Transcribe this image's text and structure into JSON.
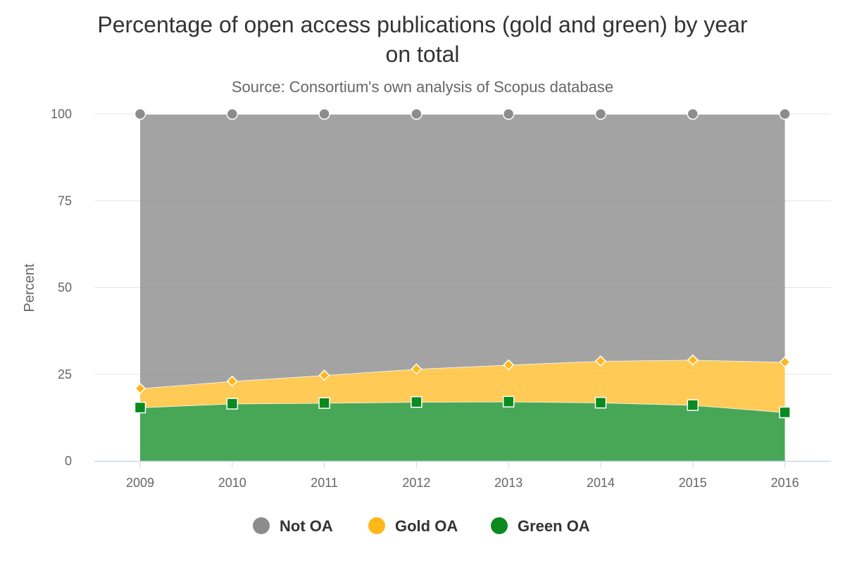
{
  "colors": {
    "not_oa": "#8c8c8c",
    "gold_oa": "#ffb81c",
    "green_oa": "#0b8a1f",
    "grid": "#e6e6e6",
    "axis": "#ccd6eb"
  },
  "legend": {
    "items": [
      {
        "label": "Not OA",
        "color": "#8c8c8c"
      },
      {
        "label": "Gold OA",
        "color": "#ffb81c"
      },
      {
        "label": "Green OA",
        "color": "#0b8a1f"
      }
    ]
  },
  "chart_data": {
    "type": "area",
    "stacking": "normal",
    "title": "Percentage of open access publications (gold and green) by year on total",
    "title_lines": [
      "Percentage of open access publications (gold and green) by year",
      "on total"
    ],
    "subtitle": "Source: Consortium's own analysis of Scopus database",
    "xlabel": "",
    "ylabel": "Percent",
    "categories": [
      "2009",
      "2010",
      "2011",
      "2012",
      "2013",
      "2014",
      "2015",
      "2016"
    ],
    "ylim": [
      0,
      100
    ],
    "yticks": [
      0,
      25,
      50,
      75,
      100
    ],
    "grid": true,
    "legend_position": "bottom-center",
    "series": [
      {
        "name": "Not OA",
        "color": "#8c8c8c",
        "marker": "circle",
        "values": [
          79.1,
          77.0,
          75.3,
          73.5,
          72.3,
          71.2,
          70.9,
          71.5
        ]
      },
      {
        "name": "Gold OA",
        "color": "#ffb81c",
        "marker": "diamond",
        "values": [
          5.5,
          6.5,
          8.0,
          9.5,
          10.6,
          12.0,
          13.0,
          14.5
        ]
      },
      {
        "name": "Green OA",
        "color": "#0b8a1f",
        "marker": "square",
        "values": [
          15.4,
          16.5,
          16.7,
          17.0,
          17.1,
          16.8,
          16.1,
          14.0
        ]
      }
    ]
  }
}
